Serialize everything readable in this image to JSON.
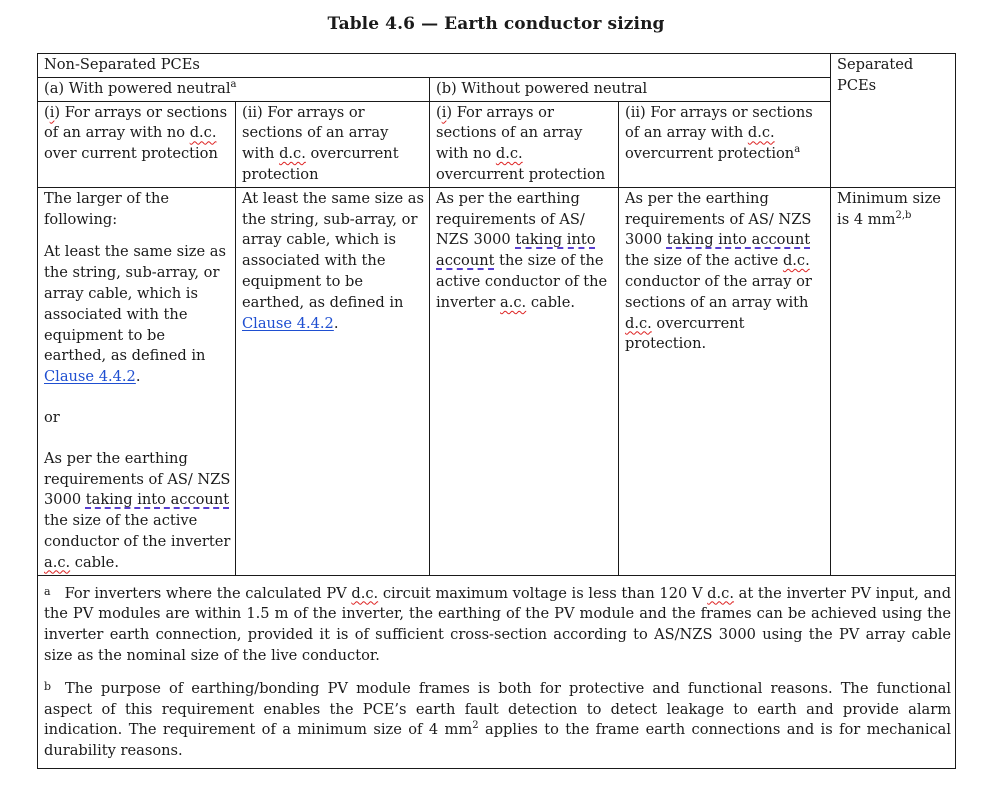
{
  "title": "Table 4.6 — Earth conductor sizing",
  "header": {
    "non_separated": "Non-Separated PCEs",
    "separated": "Separated PCEs",
    "with_neutral": "(a) With powered neutral",
    "with_neutral_note": "a",
    "without_neutral": "(b) Without powered neutral"
  },
  "subheaders": {
    "a_i_prefix": "(",
    "a_i_num": "i",
    "a_i_text": ") For arrays or sections of an array with no ",
    "a_i_dc": "d.c.",
    "a_i_tail": " over current protection",
    "a_ii_text": "(ii) For arrays or sections of an array with ",
    "a_ii_dc": "d.c.",
    "a_ii_tail": " overcurrent protection",
    "b_i_prefix": "(",
    "b_i_num": "i",
    "b_i_text": ") For arrays or sections of an array with no ",
    "b_i_dc": "d.c.",
    "b_i_tail": " overcurrent protection",
    "b_ii_text": "(ii) For arrays or sections of an array with ",
    "b_ii_dc": "d.c.",
    "b_ii_tail": " overcurrent protection",
    "b_ii_note": "a"
  },
  "body": {
    "a_i_intro": "The larger of the following:",
    "a_i_p1": "At least the same size as the string, sub-array, or array cable, which is associated with the equipment to be earthed, as defined in ",
    "a_i_p1_link": "Clause 4.4.2",
    "a_i_p1_end": ".",
    "a_i_or": "or",
    "a_i_p2_start": "As per the earthing requirements of AS/ NZS 3000 ",
    "a_i_p2_taking": "taking into account",
    "a_i_p2_mid": " the size of the active conductor of the inverter ",
    "a_i_p2_ac": "a.c.",
    "a_i_p2_end": " cable.",
    "a_ii_text": "At least the same size as the string, sub-array, or array cable, which is associated with the equipment to be earthed, as defined in ",
    "a_ii_link": "Clause 4.4.2",
    "a_ii_end": ".",
    "b_i_start": "As per the earthing requirements of AS/ NZS 3000 ",
    "b_i_taking": "taking into account",
    "b_i_mid": " the size of the active conductor of the inverter ",
    "b_i_ac": "a.c.",
    "b_i_end": " cable.",
    "b_ii_start": "As per the earthing requirements of AS/ NZS 3000 ",
    "b_ii_taking": "taking into account",
    "b_ii_mid": " the size of the active ",
    "b_ii_dc": "d.c.",
    "b_ii_mid2": " conductor of the array or sections of an array with ",
    "b_ii_dc2": "d.c.",
    "b_ii_end": " overcurrent protection.",
    "sep_text": "Minimum size is 4 mm",
    "sep_sup": "2,b"
  },
  "footnotes": {
    "a_mark": "a",
    "a_1": "For inverters where the calculated PV ",
    "a_dc1": "d.c.",
    "a_2": " circuit maximum voltage is less than 120 V ",
    "a_dc2": "d.c.",
    "a_3": " at the inverter PV input, and the PV modules are within 1.5 m of the inverter, the earthing of the PV module and the frames can be achieved using the inverter earth connection, provided it is of sufficient cross-section according to AS/NZS 3000 using the PV array cable size as the nominal size of the live conductor.",
    "b_mark": "b",
    "b_1": "The purpose of earthing/bonding PV module frames is both for protective and functional reasons. The functional aspect of this requirement enables the PCE’s earth fault detection to detect leakage to earth and provide alarm indication. The requirement of a minimum size of 4 mm",
    "b_sup": "2",
    "b_2": " applies to the frame earth connections and is for mechanical durability reasons."
  },
  "colors": {
    "link": "#1f4fd1",
    "spell": "#d22222",
    "grammar": "#5a3fd0"
  }
}
